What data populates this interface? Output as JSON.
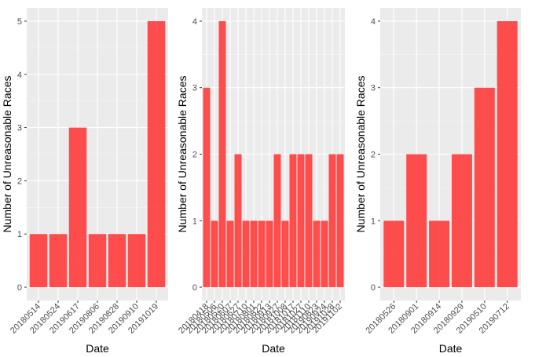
{
  "chart_data": [
    {
      "type": "bar",
      "title": "",
      "xlabel": "Date",
      "ylabel": "Number of Unreasonable Races",
      "ylim": [
        0,
        5
      ],
      "yticks": [
        0,
        1,
        2,
        3,
        4,
        5
      ],
      "categories": [
        "20180514",
        "20180524",
        "20190617",
        "20190806",
        "20190828",
        "20190910",
        "20191019"
      ],
      "values": [
        1,
        1,
        3,
        1,
        1,
        1,
        5
      ],
      "bar_color": "#ff3b3b",
      "grid": true
    },
    {
      "type": "bar",
      "title": "",
      "xlabel": "Date",
      "ylabel": "Number of Unreasonable Races",
      "ylim": [
        0,
        4
      ],
      "yticks": [
        0,
        1,
        2,
        3,
        4
      ],
      "categories": [
        "20180418",
        "20180506",
        "20180520",
        "20180607",
        "20180627",
        "20180710",
        "20180801",
        "20180822",
        "20180913",
        "20180927",
        "20181008",
        "20181017",
        "20181027",
        "20181110",
        "20190823",
        "20190924",
        "20191028",
        "20191102"
      ],
      "values": [
        3,
        1,
        4,
        1,
        2,
        1,
        1,
        1,
        1,
        2,
        1,
        2,
        2,
        2,
        1,
        1,
        2,
        2
      ],
      "bar_color": "#ff3b3b",
      "grid": true
    },
    {
      "type": "bar",
      "title": "",
      "xlabel": "Date",
      "ylabel": "Number of Unreasonable Races",
      "ylim": [
        0,
        4
      ],
      "yticks": [
        0,
        1,
        2,
        3,
        4
      ],
      "categories": [
        "20180526",
        "20180901",
        "20180914",
        "20180929",
        "20190510",
        "20190712"
      ],
      "values": [
        1,
        2,
        1,
        2,
        3,
        4
      ],
      "bar_color": "#ff3b3b",
      "grid": true
    }
  ]
}
